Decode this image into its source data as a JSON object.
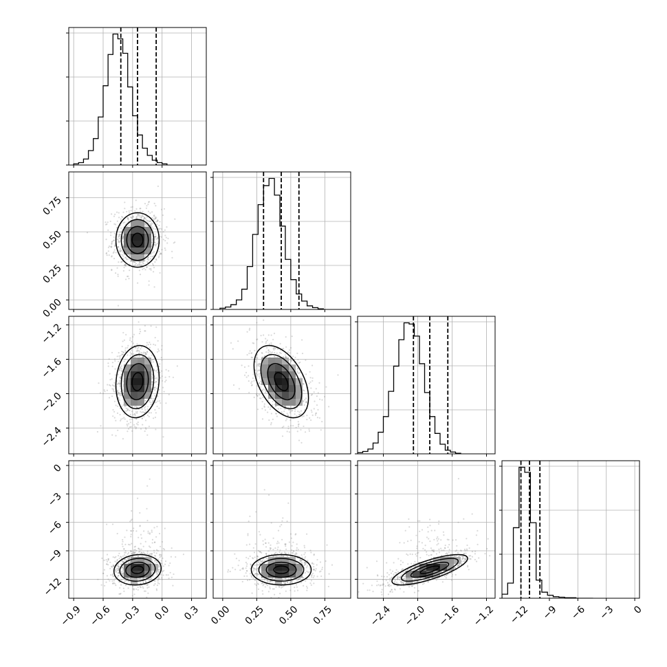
{
  "chart_data": {
    "type": "corner",
    "parameters": 4,
    "show_titles": false,
    "grid": true,
    "quantiles": [
      0.16,
      0.5,
      0.84
    ],
    "colors": {
      "histogram": "#000000",
      "quantile_line": "#000000",
      "contour": "#000000",
      "points": "#808080",
      "grid": "#b0b0b0"
    },
    "axes": [
      {
        "range": [
          -0.95,
          0.45
        ],
        "ticks": [
          -0.9,
          -0.6,
          -0.3,
          0.0,
          0.3
        ],
        "tick_labels": [
          "−0.9",
          "−0.6",
          "−0.3",
          "0.0",
          "0.3"
        ]
      },
      {
        "range": [
          -0.07,
          0.94
        ],
        "ticks": [
          0.0,
          0.25,
          0.5,
          0.75
        ],
        "tick_labels": [
          "0.00",
          "0.25",
          "0.50",
          "0.75"
        ]
      },
      {
        "range": [
          -2.7,
          -1.1
        ],
        "ticks": [
          -2.4,
          -2.0,
          -1.6,
          -1.2
        ],
        "tick_labels": [
          "−2.4",
          "−2.0",
          "−1.6",
          "−1.2"
        ]
      },
      {
        "range": [
          -14.0,
          0.5
        ],
        "ticks": [
          -12,
          -9,
          -6,
          -3,
          0
        ],
        "tick_labels": [
          "−12",
          "−9",
          "−6",
          "−3",
          "0"
        ]
      }
    ],
    "marginals": [
      {
        "quantile_values": [
          -0.42,
          -0.25,
          -0.06
        ],
        "bin_start": -0.9,
        "bin_width": 0.05,
        "counts": [
          2,
          4,
          10,
          24,
          44,
          80,
          132,
          184,
          218,
          210,
          186,
          130,
          82,
          50,
          28,
          16,
          8,
          4,
          2
        ]
      },
      {
        "quantile_values": [
          0.3,
          0.43,
          0.56
        ],
        "bin_start": -0.02,
        "bin_width": 0.04,
        "counts": [
          2,
          4,
          8,
          16,
          34,
          72,
          126,
          176,
          208,
          220,
          192,
          140,
          84,
          50,
          26,
          14,
          6,
          3,
          1
        ]
      },
      {
        "quantile_values": [
          -2.05,
          -1.86,
          -1.65
        ],
        "bin_start": -2.7,
        "bin_width": 0.06,
        "counts": [
          2,
          4,
          8,
          18,
          36,
          62,
          104,
          146,
          190,
          218,
          216,
          196,
          150,
          102,
          62,
          34,
          16,
          6,
          3,
          1
        ]
      },
      {
        "quantile_values": [
          -12.0,
          -11.1,
          -10.0
        ],
        "bin_start": -14.0,
        "bin_width": 0.6,
        "counts": [
          8,
          30,
          140,
          260,
          250,
          150,
          36,
          12,
          6,
          3,
          2,
          1,
          1,
          0,
          0,
          0
        ]
      }
    ],
    "pairs": [
      {
        "x_param": 0,
        "y_param": 1,
        "mean": [
          -0.25,
          0.44
        ],
        "std": [
          0.11,
          0.1
        ],
        "correlation": 0.0
      },
      {
        "x_param": 0,
        "y_param": 2,
        "mean": [
          -0.25,
          -1.86
        ],
        "std": [
          0.11,
          0.21
        ],
        "correlation": 0.1
      },
      {
        "x_param": 1,
        "y_param": 2,
        "mean": [
          0.43,
          -1.86
        ],
        "std": [
          0.1,
          0.21
        ],
        "correlation": -0.45
      },
      {
        "x_param": 0,
        "y_param": 3,
        "mean": [
          -0.25,
          -11.0
        ],
        "std": [
          0.12,
          0.8
        ],
        "correlation": 0.1
      },
      {
        "x_param": 1,
        "y_param": 3,
        "mean": [
          0.43,
          -11.0
        ],
        "std": [
          0.11,
          0.8
        ],
        "correlation": 0.0
      },
      {
        "x_param": 2,
        "y_param": 3,
        "mean": [
          -1.86,
          -11.0
        ],
        "std": [
          0.22,
          0.8
        ],
        "correlation": 0.75
      }
    ],
    "contour_sigmas": [
      0.5,
      1.0,
      1.5,
      2.0
    ]
  }
}
